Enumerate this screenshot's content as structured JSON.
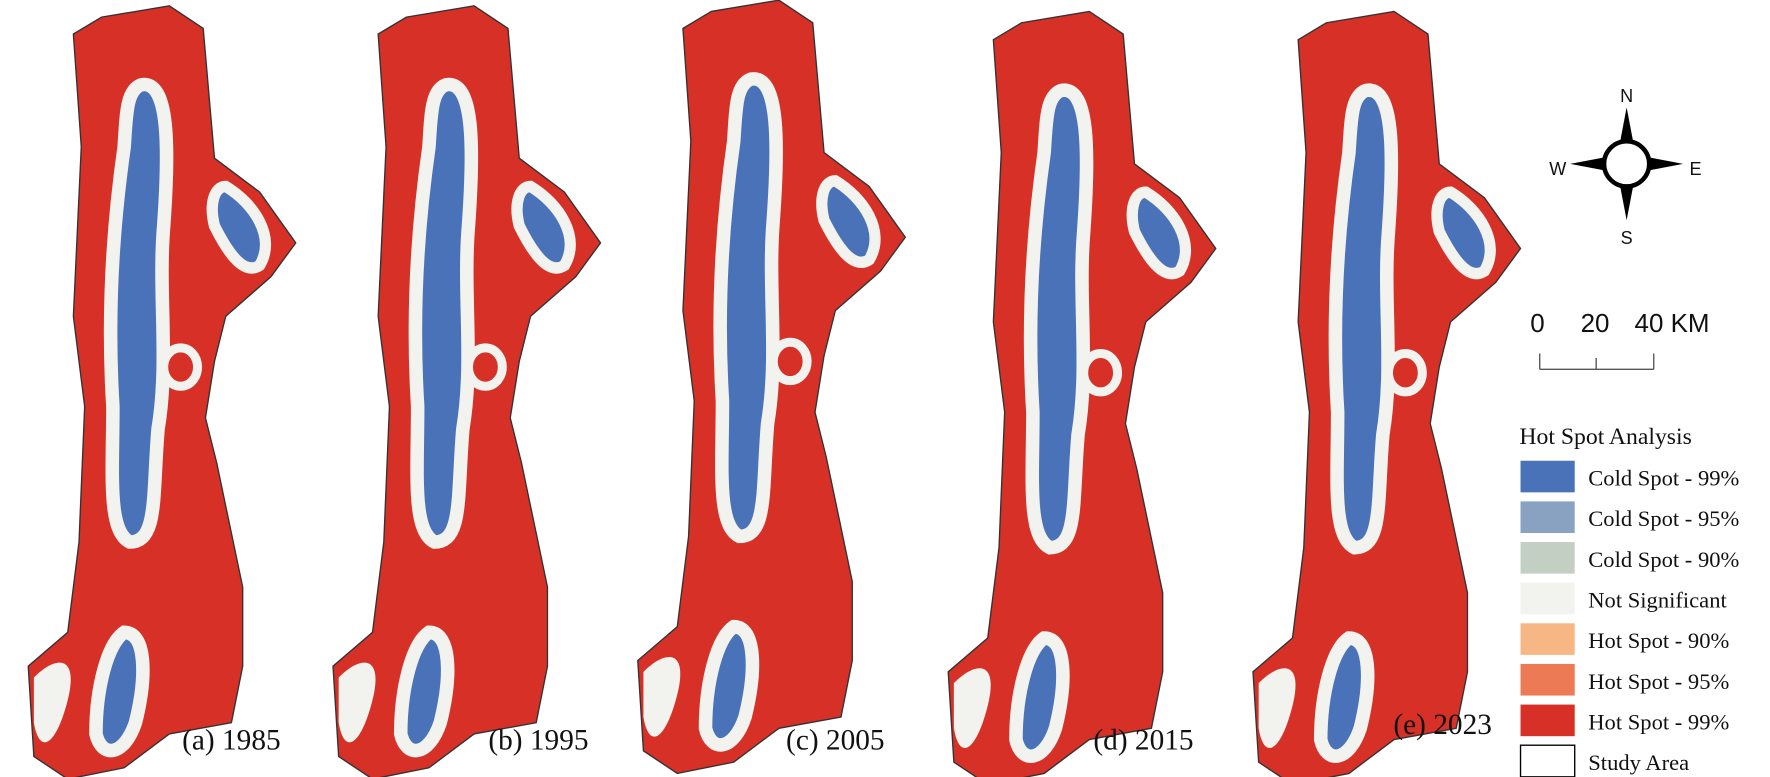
{
  "panels": [
    {
      "label": "(a) 1985"
    },
    {
      "label": "(b) 1995"
    },
    {
      "label": "(c) 2005"
    },
    {
      "label": "(d) 2015"
    },
    {
      "label": "(e) 2023"
    }
  ],
  "compass": {
    "north": "N",
    "south": "S",
    "east": "E",
    "west": "W"
  },
  "scale_bar": {
    "labels": [
      "0",
      "20",
      "40 KM"
    ]
  },
  "legend": {
    "title": "Hot Spot Analysis",
    "items": [
      {
        "label": "Cold Spot - 99%",
        "color": "#4a72b8"
      },
      {
        "label": "Cold Spot - 95%",
        "color": "#8aa2c2"
      },
      {
        "label": "Cold Spot - 90%",
        "color": "#c4cfc4"
      },
      {
        "label": "Not Significant",
        "color": "#f2f2ee"
      },
      {
        "label": "Hot Spot - 90%",
        "color": "#f7b785"
      },
      {
        "label": "Hot Spot - 95%",
        "color": "#ec7a55"
      },
      {
        "label": "Hot Spot - 99%",
        "color": "#d63027"
      },
      {
        "label": "Study Area",
        "color": "#ffffff"
      }
    ]
  }
}
